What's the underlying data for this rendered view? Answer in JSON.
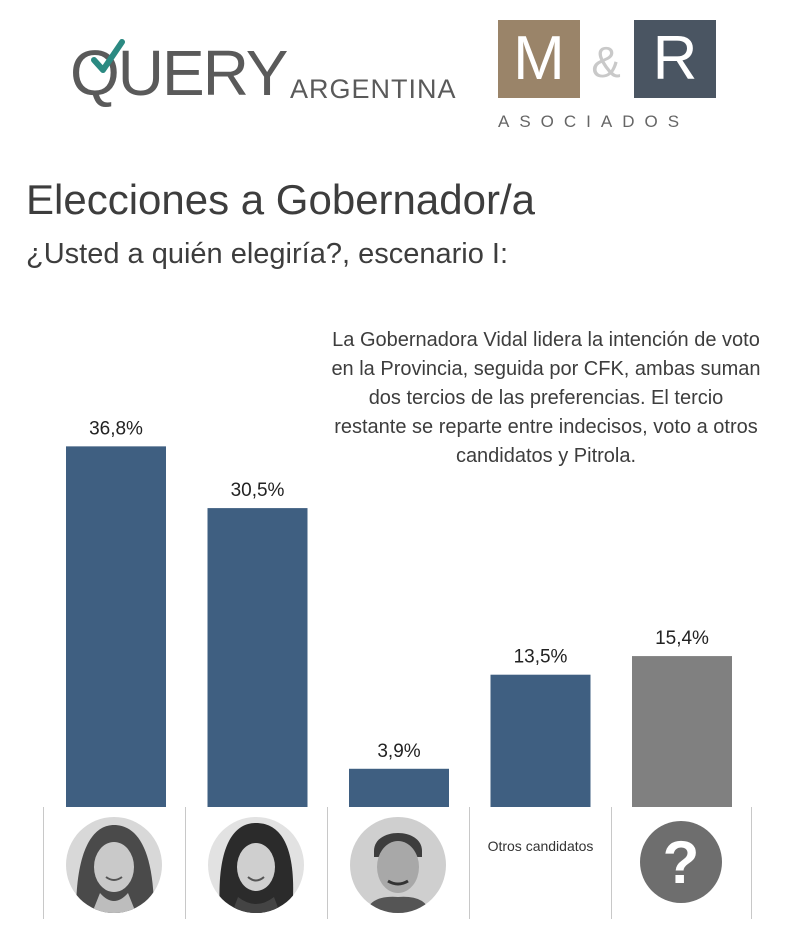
{
  "logos": {
    "query": {
      "word": "QUERY",
      "region": "ARGENTINA"
    },
    "mr": {
      "m": "M",
      "amp": "&",
      "r": "R",
      "sub": "ASOCIADOS",
      "colors": {
        "m": "#9a8469",
        "r": "#4a5562"
      }
    }
  },
  "headline": {
    "title": "Elecciones a Gobernador/a",
    "subtitle": "¿Usted a quién elegiría?, escenario I:"
  },
  "annotation": "La Gobernadora Vidal lidera la intención de voto en la Provincia, seguida por CFK, ambas suman dos tercios de las preferencias. El tercio restante se reparte entre indecisos, voto a otros candidatos y Pitrola.",
  "chart_data": {
    "type": "bar",
    "categories": [
      "candidate-1-photo",
      "candidate-2-photo",
      "candidate-3-photo",
      "Otros candidatos",
      "question-icon"
    ],
    "values": [
      36.8,
      30.5,
      3.9,
      13.5,
      15.4
    ],
    "labels": [
      "36,8%",
      "30,5%",
      "3,9%",
      "13,5%",
      "15,4%"
    ],
    "colors": [
      "#3f5f81",
      "#3f5f81",
      "#3f5f81",
      "#3f5f81",
      "#808080"
    ],
    "ylim": [
      0,
      40
    ]
  },
  "categories_row": {
    "otros_label": "Otros candidatos",
    "question_glyph": "?"
  }
}
